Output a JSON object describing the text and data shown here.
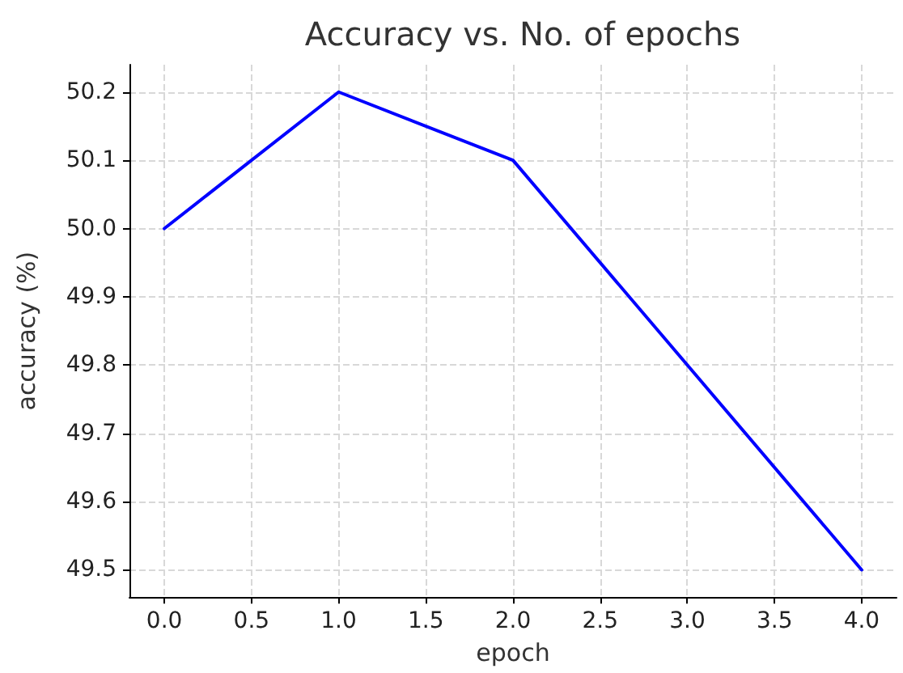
{
  "chart_data": {
    "type": "line",
    "title": "Accuracy vs. No. of epochs",
    "xlabel": "epoch",
    "ylabel": "accuracy (%)",
    "x": [
      0,
      1,
      2,
      3,
      4
    ],
    "series": [
      {
        "color": "#0000ff",
        "values": [
          50.0,
          50.2,
          50.1,
          49.8,
          49.5
        ]
      }
    ],
    "xlim": [
      -0.2,
      4.2
    ],
    "xticks": [
      {
        "value": 0,
        "label": "0.0"
      },
      {
        "value": 0.5,
        "label": "0.5"
      },
      {
        "value": 1,
        "label": "1.0"
      },
      {
        "value": 1.5,
        "label": "1.5"
      },
      {
        "value": 2,
        "label": "2.0"
      },
      {
        "value": 2.5,
        "label": "2.5"
      },
      {
        "value": 3,
        "label": "3.0"
      },
      {
        "value": 3.5,
        "label": "3.5"
      },
      {
        "value": 4,
        "label": "4.0"
      }
    ],
    "ylim": [
      49.46,
      50.24
    ],
    "yticks": [
      {
        "value": 49.5,
        "label": "49.5"
      },
      {
        "value": 49.6,
        "label": "49.6"
      },
      {
        "value": 49.7,
        "label": "49.7"
      },
      {
        "value": 49.8,
        "label": "49.8"
      },
      {
        "value": 49.9,
        "label": "49.9"
      },
      {
        "value": 50.0,
        "label": "50.0"
      },
      {
        "value": 50.1,
        "label": "50.1"
      },
      {
        "value": 50.2,
        "label": "50.2"
      }
    ],
    "grid": true,
    "marker": "none",
    "line_style": "solid"
  }
}
